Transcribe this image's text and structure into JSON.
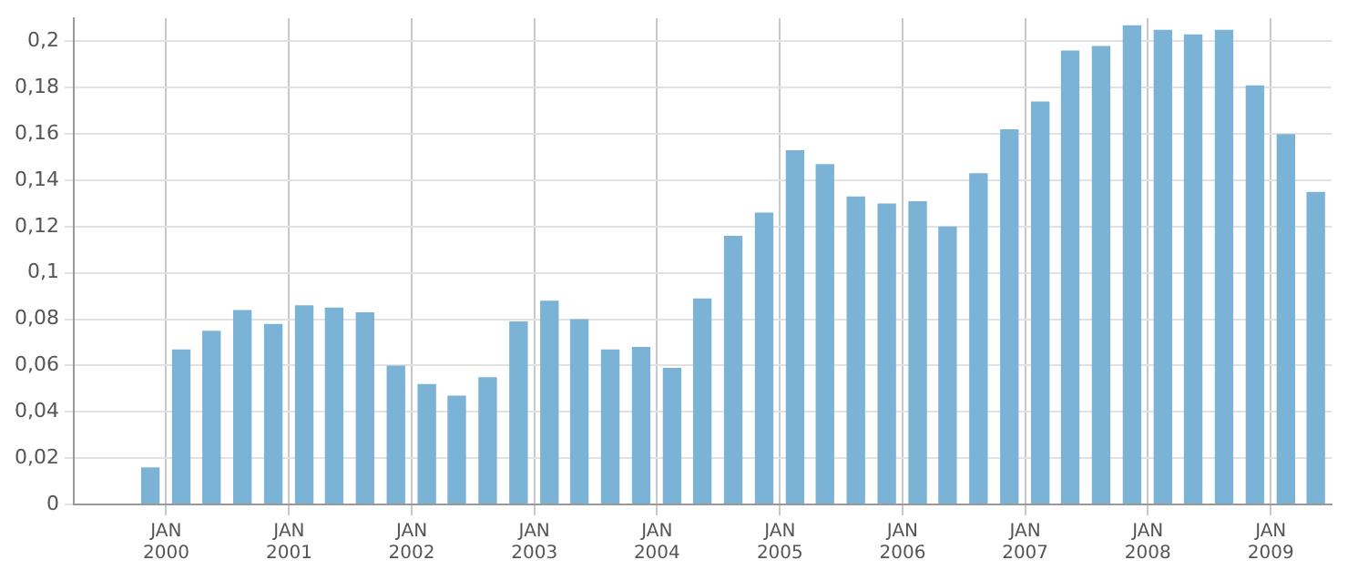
{
  "chart_data": {
    "type": "bar",
    "x": [
      "1999-11-15",
      "2000-02-15",
      "2000-05-15",
      "2000-08-15",
      "2000-11-15",
      "2001-02-15",
      "2001-05-15",
      "2001-08-15",
      "2001-11-15",
      "2002-02-15",
      "2002-05-15",
      "2002-08-15",
      "2002-11-15",
      "2003-02-15",
      "2003-05-15",
      "2003-08-15",
      "2003-11-15",
      "2004-02-15",
      "2004-05-15",
      "2004-08-15",
      "2004-11-15",
      "2005-02-15",
      "2005-05-15",
      "2005-08-15",
      "2005-11-15",
      "2006-02-15",
      "2006-05-15",
      "2006-08-15",
      "2006-11-15",
      "2007-02-15",
      "2007-05-15",
      "2007-08-15",
      "2007-11-15",
      "2008-02-15",
      "2008-05-15",
      "2008-08-15",
      "2008-11-15",
      "2009-02-15",
      "2009-05-15"
    ],
    "values": [
      0.016,
      0.067,
      0.075,
      0.084,
      0.078,
      0.086,
      0.085,
      0.083,
      0.06,
      0.052,
      0.047,
      0.055,
      0.079,
      0.088,
      0.08,
      0.067,
      0.068,
      0.059,
      0.089,
      0.116,
      0.126,
      0.153,
      0.147,
      0.133,
      0.13,
      0.131,
      0.12,
      0.143,
      0.162,
      0.174,
      0.196,
      0.198,
      0.207,
      0.205,
      0.203,
      0.205,
      0.181,
      0.16,
      0.135
    ],
    "color": "#7ab3d6",
    "xlim": [
      "1999-04-01",
      "2009-07-01"
    ],
    "xticks": [
      {
        "value": "2000-01-01",
        "label": "JAN 2000"
      },
      {
        "value": "2001-01-01",
        "label": "JAN 2001"
      },
      {
        "value": "2002-01-01",
        "label": "JAN 2002"
      },
      {
        "value": "2003-01-01",
        "label": "JAN 2003"
      },
      {
        "value": "2004-01-01",
        "label": "JAN 2004"
      },
      {
        "value": "2005-01-01",
        "label": "JAN 2005"
      },
      {
        "value": "2006-01-01",
        "label": "JAN 2006"
      },
      {
        "value": "2007-01-01",
        "label": "JAN 2007"
      },
      {
        "value": "2008-01-01",
        "label": "JAN 2008"
      },
      {
        "value": "2009-01-01",
        "label": "JAN 2009"
      }
    ],
    "ylim": [
      0,
      0.21
    ],
    "yticks": [
      0,
      {
        "value": 0.02,
        "label": "0,02"
      },
      {
        "value": 0.04,
        "label": "0,04"
      },
      {
        "value": 0.06,
        "label": "0,06"
      },
      {
        "value": 0.08,
        "label": "0,08"
      },
      {
        "value": 0.1,
        "label": "0,1"
      },
      {
        "value": 0.12,
        "label": "0,12"
      },
      {
        "value": 0.14,
        "label": "0,14"
      },
      {
        "value": 0.16,
        "label": "0,16"
      },
      {
        "value": 0.18,
        "label": "0,18"
      },
      {
        "value": 0.2,
        "label": "0,2"
      }
    ],
    "grid": true
  }
}
